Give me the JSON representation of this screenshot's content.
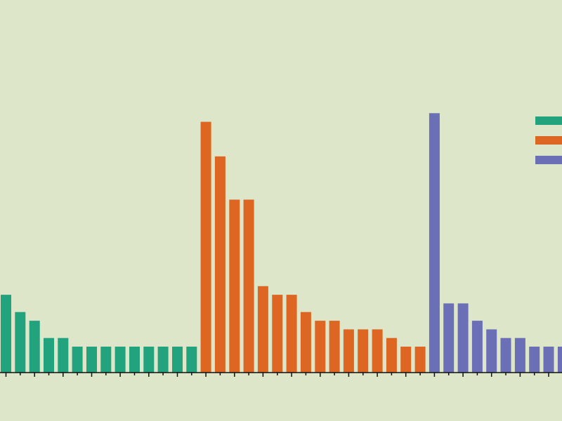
{
  "chart_data": {
    "type": "bar",
    "title": "",
    "xlabel": "",
    "ylabel": "",
    "ylim": [
      0,
      31
    ],
    "grid": false,
    "legend": "top-right",
    "series": [
      {
        "color": "#23a27e",
        "values": [
          9,
          7,
          6,
          4,
          4,
          3,
          3,
          3,
          3,
          3,
          3,
          3,
          3,
          3
        ]
      },
      {
        "color": "#dd6622",
        "values": [
          29,
          25,
          20,
          20,
          10,
          9,
          9,
          7,
          6,
          6,
          5,
          5,
          5,
          4,
          3,
          3
        ]
      },
      {
        "color": "#6b6fb6",
        "values": [
          30,
          8,
          8,
          6,
          5,
          4,
          4,
          3,
          3,
          3
        ]
      }
    ]
  }
}
